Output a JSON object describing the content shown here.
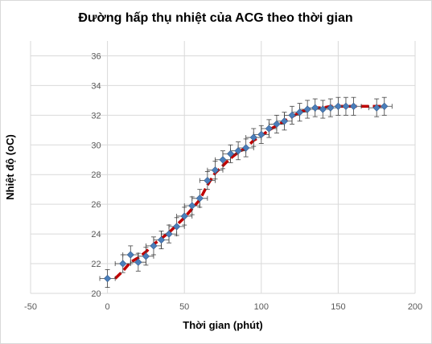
{
  "chart_data": {
    "type": "scatter",
    "title": "Đường hấp thụ nhiệt của ACG theo thời gian",
    "xlabel": "Thời gian (phút)",
    "ylabel": "Nhiệt độ (oC)",
    "xlim": [
      -50,
      200
    ],
    "ylim": [
      20,
      37
    ],
    "xticks": [
      -50,
      0,
      50,
      100,
      150,
      200
    ],
    "yticks": [
      20,
      22,
      24,
      26,
      28,
      30,
      32,
      34,
      36
    ],
    "grid": true,
    "legend": "none",
    "error_bars": {
      "x": 5,
      "y": 0.6
    },
    "series": [
      {
        "color": "#4a7ebb",
        "marker": "diamond",
        "x": [
          0,
          10,
          15,
          20,
          25,
          30,
          35,
          40,
          45,
          50,
          55,
          60,
          65,
          70,
          75,
          80,
          85,
          90,
          95,
          100,
          105,
          110,
          115,
          120,
          125,
          130,
          135,
          140,
          145,
          150,
          155,
          160,
          175,
          180
        ],
        "y": [
          21.0,
          22.0,
          22.6,
          22.1,
          22.5,
          23.2,
          23.6,
          24.0,
          24.5,
          25.2,
          25.9,
          26.4,
          27.6,
          28.3,
          29.0,
          29.4,
          29.6,
          29.8,
          30.5,
          30.7,
          31.1,
          31.4,
          31.6,
          32.0,
          32.2,
          32.4,
          32.5,
          32.4,
          32.5,
          32.6,
          32.6,
          32.6,
          32.5,
          32.6
        ]
      }
    ],
    "trendline": {
      "color": "#c00000",
      "style": "dashed",
      "x": [
        5,
        10,
        15,
        20,
        25,
        30,
        35,
        40,
        45,
        50,
        55,
        60,
        65,
        70,
        75,
        80,
        85,
        90,
        95,
        100,
        105,
        110,
        115,
        120,
        125,
        130,
        135,
        140,
        145,
        150,
        155,
        160,
        165,
        170,
        175,
        180
      ],
      "y": [
        21.0,
        21.5,
        22.1,
        22.4,
        22.8,
        23.3,
        23.7,
        24.1,
        24.6,
        25.1,
        25.7,
        26.3,
        27.3,
        28.1,
        28.6,
        29.1,
        29.5,
        29.8,
        30.3,
        30.6,
        31.0,
        31.3,
        31.6,
        31.9,
        32.2,
        32.4,
        32.5,
        32.5,
        32.6,
        32.6,
        32.6,
        32.6,
        32.6,
        32.6,
        32.6,
        32.6
      ]
    }
  }
}
